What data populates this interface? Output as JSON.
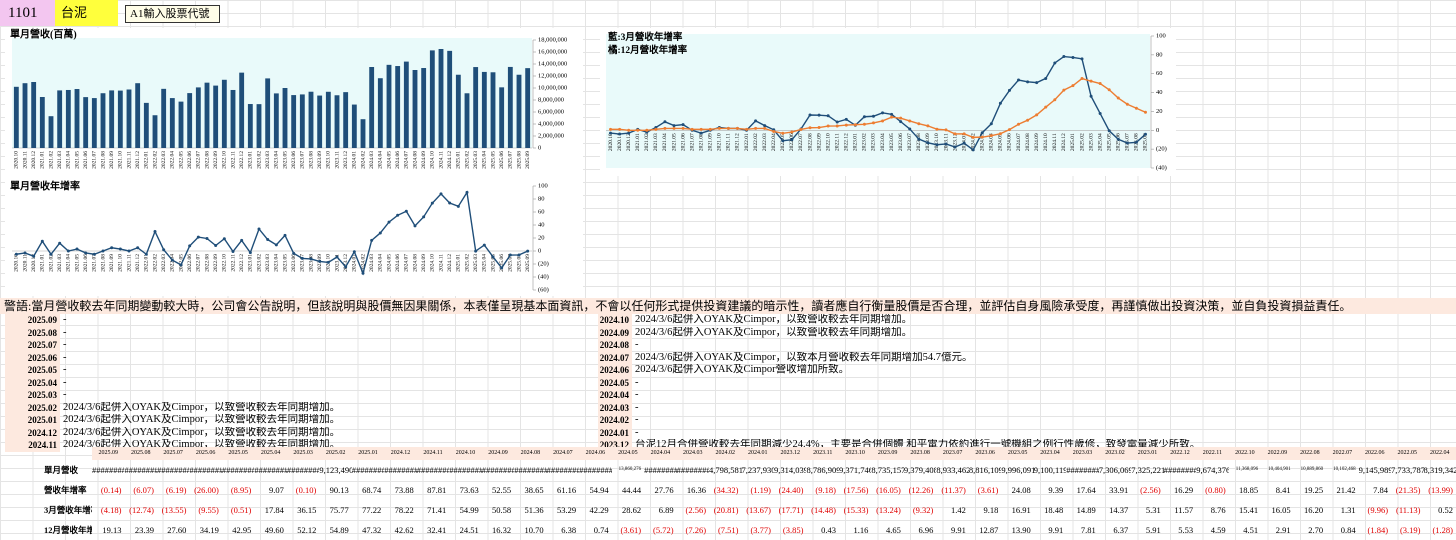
{
  "header": {
    "code": "1101",
    "name": "台泥",
    "hint": "A1輸入股票代號"
  },
  "chart_data": [
    {
      "type": "bar",
      "title": "單月營收(百萬)",
      "categories": [
        "2020.10",
        "2020.11",
        "2020.12",
        "2021.01",
        "2021.02",
        "2021.03",
        "2021.04",
        "2021.05",
        "2021.06",
        "2021.07",
        "2021.08",
        "2021.09",
        "2021.10",
        "2021.11",
        "2021.12",
        "2022.01",
        "2022.02",
        "2022.03",
        "2022.04",
        "2022.05",
        "2022.06",
        "2022.07",
        "2022.08",
        "2022.09",
        "2022.10",
        "2022.11",
        "2022.12",
        "2023.01",
        "2023.02",
        "2023.03",
        "2023.04",
        "2023.05",
        "2023.06",
        "2023.07",
        "2023.08",
        "2023.09",
        "2023.10",
        "2023.11",
        "2023.12",
        "2024.01",
        "2024.02",
        "2024.03",
        "2024.04",
        "2024.05",
        "2024.06",
        "2024.07",
        "2024.08",
        "2024.09",
        "2024.10",
        "2024.11",
        "2024.12",
        "2025.01",
        "2025.02",
        "2025.03",
        "2025.04",
        "2025.05",
        "2025.06",
        "2025.07",
        "2025.08",
        "2025.09"
      ],
      "values": [
        10200000,
        10800000,
        11000000,
        8500000,
        5300000,
        9600000,
        9670000,
        9830000,
        8480000,
        8320000,
        9130000,
        9600000,
        9570000,
        9750000,
        10800000,
        7520000,
        5460000,
        9860000,
        8320000,
        7730000,
        9150000,
        10100000,
        10890000,
        10400000,
        11370000,
        9670000,
        12560000,
        7330000,
        7310000,
        11600000,
        9100000,
        10000000,
        8820000,
        8930000,
        9380000,
        8740000,
        9370000,
        8790000,
        9310000,
        7240000,
        4800000,
        13500000,
        11630000,
        13860000,
        13660000,
        14400000,
        13000000,
        13330000,
        16270000,
        16500000,
        16190000,
        12210000,
        9120000,
        13490000,
        12680000,
        12620000,
        10110000,
        13510000,
        12210000,
        13310000
      ],
      "color": "#1f4e79",
      "ylim": [
        0,
        18000000
      ],
      "yticks": [
        0,
        {
          "value": 2000000,
          "label": "2,000,000"
        },
        {
          "value": 4000000,
          "label": "4,000,000"
        },
        {
          "value": 6000000,
          "label": "6,000,000"
        },
        {
          "value": 8000000,
          "label": "8,000,000"
        },
        {
          "value": 10000000,
          "label": "10,000,000"
        },
        {
          "value": 12000000,
          "label": "12,000,000"
        },
        {
          "value": 14000000,
          "label": "14,000,000"
        },
        {
          "value": 16000000,
          "label": "16,000,000"
        },
        {
          "value": 18000000,
          "label": "18,000,000"
        }
      ]
    },
    {
      "type": "line",
      "title": "單月營收年增率",
      "categories": [
        "2020.10",
        "2020.11",
        "2020.12",
        "2021.01",
        "2021.02",
        "2021.03",
        "2021.04",
        "2021.05",
        "2021.06",
        "2021.07",
        "2021.08",
        "2021.09",
        "2021.10",
        "2021.11",
        "2021.12",
        "2022.01",
        "2022.02",
        "2022.03",
        "2022.04",
        "2022.05",
        "2022.06",
        "2022.07",
        "2022.08",
        "2022.09",
        "2022.10",
        "2022.11",
        "2022.12",
        "2023.01",
        "2023.02",
        "2023.03",
        "2023.04",
        "2023.05",
        "2023.06",
        "2023.07",
        "2023.08",
        "2023.09",
        "2023.10",
        "2023.11",
        "2023.12",
        "2024.01",
        "2024.02",
        "2024.03",
        "2024.04",
        "2024.05",
        "2024.06",
        "2024.07",
        "2024.08",
        "2024.09",
        "2024.10",
        "2024.11",
        "2024.12",
        "2025.01",
        "2025.02",
        "2025.03",
        "2025.04",
        "2025.05",
        "2025.06",
        "2025.07",
        "2025.08",
        "2025.09"
      ],
      "series": [
        {
          "color": "#1f4e79",
          "values": [
            -5,
            -3,
            -8,
            15,
            -5,
            12,
            0,
            3,
            -3,
            -5,
            0,
            5,
            3,
            0,
            5,
            -5,
            30,
            2,
            -13.99,
            -21.35,
            7.84,
            21.42,
            19.25,
            8.41,
            18.85,
            -0.8,
            16.29,
            -2.56,
            33.91,
            17.64,
            9.39,
            24.08,
            -3.61,
            -11.37,
            -12.26,
            -16.05,
            -17.56,
            -9.18,
            -24.4,
            -1.19,
            -34.32,
            16.36,
            27.76,
            44.44,
            54.94,
            61.16,
            38.65,
            52.55,
            73.63,
            87.81,
            73.88,
            68.74,
            90.13,
            -0.1,
            9.07,
            -8.95,
            -26.0,
            -6.19,
            -6.07,
            -0.14
          ]
        }
      ],
      "ylim": [
        -60,
        100
      ],
      "yticks": [
        {
          "value": -60,
          "label": "(60)"
        },
        {
          "value": -40,
          "label": "(40)"
        },
        {
          "value": -20,
          "label": "(20)"
        },
        0,
        20,
        40,
        60,
        80,
        100
      ]
    },
    {
      "type": "line",
      "categories": [
        "2020.10",
        "2020.11",
        "2020.12",
        "2021.01",
        "2021.02",
        "2021.03",
        "2021.04",
        "2021.05",
        "2021.06",
        "2021.07",
        "2021.08",
        "2021.09",
        "2021.10",
        "2021.11",
        "2021.12",
        "2022.01",
        "2022.02",
        "2022.03",
        "2022.04",
        "2022.05",
        "2022.06",
        "2022.07",
        "2022.08",
        "2022.09",
        "2022.10",
        "2022.11",
        "2022.12",
        "2023.01",
        "2023.02",
        "2023.03",
        "2023.04",
        "2023.05",
        "2023.06",
        "2023.07",
        "2023.08",
        "2023.09",
        "2023.10",
        "2023.11",
        "2023.12",
        "2024.01",
        "2024.02",
        "2024.03",
        "2024.04",
        "2024.05",
        "2024.06",
        "2024.07",
        "2024.08",
        "2024.09",
        "2024.10",
        "2024.11",
        "2024.12",
        "2025.01",
        "2025.02",
        "2025.03",
        "2025.04",
        "2025.05",
        "2025.06",
        "2025.07",
        "2025.08",
        "2025.09"
      ],
      "series": [
        {
          "name": "藍:3月營收年增率",
          "color": "#1f4e79",
          "values": [
            -3,
            -4,
            -3,
            1,
            -2,
            3,
            9,
            5,
            6,
            0,
            -3,
            0,
            3,
            2,
            2,
            0,
            10,
            5,
            0.52,
            -11.13,
            -9.96,
            1.31,
            16.2,
            16.05,
            15.41,
            8.76,
            11.57,
            5.31,
            14.37,
            14.89,
            18.48,
            16.91,
            9.18,
            1.42,
            -9.32,
            -13.24,
            -15.33,
            -14.48,
            -17.71,
            -13.67,
            -20.81,
            -2.56,
            6.89,
            28.62,
            42.29,
            53.29,
            51.36,
            50.58,
            54.99,
            71.41,
            78.22,
            77.22,
            75.77,
            36.15,
            17.84,
            -0.51,
            -9.55,
            -13.55,
            -12.74,
            -4.18
          ]
        },
        {
          "name": "橘:12月營收年增率",
          "color": "#ed7d31",
          "values": [
            1,
            1,
            0,
            0,
            0,
            1,
            2,
            2,
            2,
            1,
            1,
            1,
            2,
            2,
            2,
            1,
            2,
            2,
            -1.28,
            -3.19,
            -1.84,
            0.84,
            2.7,
            2.91,
            4.51,
            4.59,
            5.53,
            5.91,
            6.37,
            7.81,
            9.91,
            13.9,
            12.87,
            9.91,
            6.96,
            4.65,
            1.16,
            0.43,
            -3.85,
            -3.77,
            -7.51,
            -7.26,
            -5.72,
            -3.61,
            0.74,
            6.38,
            10.7,
            16.32,
            24.51,
            32.41,
            42.62,
            47.32,
            54.89,
            52.12,
            49.6,
            42.95,
            34.19,
            27.6,
            23.39,
            19.13
          ]
        }
      ],
      "ylim": [
        -40,
        100
      ],
      "yticks": [
        {
          "value": -40,
          "label": "(40)"
        },
        {
          "value": -20,
          "label": "(20)"
        },
        0,
        20,
        40,
        60,
        80,
        100
      ]
    }
  ],
  "notice": "警語:當月營收較去年同期變動較大時，公司會公告說明，但該說明與股價無因果關係，本表僅呈現基本面資訊，不會以任何形式提供投資建議的暗示性，讀者應自行衡量股價是否合理，並評估自身風險承受度，再謹慎做出投資決策，並自負投資損益責任。",
  "notes": {
    "left": [
      {
        "month": "2025.09",
        "text": "-"
      },
      {
        "month": "2025.08",
        "text": "-"
      },
      {
        "month": "2025.07",
        "text": "-"
      },
      {
        "month": "2025.06",
        "text": "-"
      },
      {
        "month": "2025.05",
        "text": "-"
      },
      {
        "month": "2025.04",
        "text": "-"
      },
      {
        "month": "2025.03",
        "text": "-"
      },
      {
        "month": "2025.02",
        "text": "2024/3/6起併入OYAK及Cimpor，以致營收較去年同期增加。"
      },
      {
        "month": "2025.01",
        "text": "2024/3/6起併入OYAK及Cimpor，以致營收較去年同期增加。"
      },
      {
        "month": "2024.12",
        "text": "2024/3/6起併入OYAK及Cimpor，以致營收較去年同期增加。"
      },
      {
        "month": "2024.11",
        "text": "2024/3/6起併入OYAK及Cimpor，以致營收較去年同期增加。"
      }
    ],
    "right": [
      {
        "month": "2024.10",
        "text": "2024/3/6起併入OYAK及Cimpor，以致營收較去年同期增加。"
      },
      {
        "month": "2024.09",
        "text": "2024/3/6起併入OYAK及Cimpor，以致營收較去年同期增加。"
      },
      {
        "month": "2024.08",
        "text": "-"
      },
      {
        "month": "2024.07",
        "text": "2024/3/6起併入OYAK及Cimpor，以致本月營收較去年同期增加54.7億元。"
      },
      {
        "month": "2024.06",
        "text": "2024/3/6起併入OYAK及Cimpor營收增加所致。"
      },
      {
        "month": "2024.05",
        "text": "-"
      },
      {
        "month": "2024.04",
        "text": "-"
      },
      {
        "month": "2024.03",
        "text": "-"
      },
      {
        "month": "2024.02",
        "text": "-"
      },
      {
        "month": "2024.01",
        "text": "-"
      },
      {
        "month": "2023.12",
        "text": "台泥12月合併營收較去年同期減少24.4%，主要是合併個體 和平電力依約進行一號機組之例行性歲修，致發電量減少所致。"
      }
    ]
  },
  "table": {
    "columns": [
      "2025.09",
      "2025.08",
      "2025.07",
      "2025.06",
      "2025.05",
      "2025.04",
      "2025.03",
      "2025.02",
      "2025.01",
      "2024.12",
      "2024.11",
      "2024.10",
      "2024.09",
      "2024.08",
      "2024.07",
      "2024.06",
      "2024.05",
      "2024.04",
      "2024.03",
      "2024.02",
      "2024.01",
      "2023.12",
      "2023.11",
      "2023.10",
      "2023.09",
      "2023.08",
      "2023.07",
      "2023.06",
      "2023.05",
      "2023.04",
      "2023.03",
      "2023.02",
      "2023.01",
      "2022.12",
      "2022.11",
      "2022.10",
      "2022.09",
      "2022.08",
      "2022.07",
      "2022.06",
      "2022.05",
      "2022.04"
    ],
    "rows": [
      {
        "label": "單月營收",
        "cells": [
          "########",
          "########",
          "########",
          "########",
          "########",
          "########",
          "########",
          "9,123,490",
          "########",
          "########",
          "########",
          "########",
          "########",
          "########",
          "########",
          "########",
          "13,860,276",
          "########",
          "########",
          "4,798,581",
          "7,237,930",
          "9,314,039",
          "8,786,909",
          "9,371,746",
          "8,735,157",
          "9,379,408",
          "8,933,462",
          "8,816,109",
          "9,996,091",
          "9,100,119",
          "########",
          "7,306,069",
          "7,325,221",
          "########",
          "9,674,376",
          "11,368,096",
          "10,404,901",
          "10,889,860",
          "10,102,468",
          "9,145,989",
          "7,733,787",
          "8,319,342"
        ]
      },
      {
        "label": "營收年增率",
        "cells": [
          "(0.14)",
          "(6.07)",
          "(6.19)",
          "(26.00)",
          "(8.95)",
          "9.07",
          "(0.10)",
          "90.13",
          "68.74",
          "73.88",
          "87.81",
          "73.63",
          "52.55",
          "38.65",
          "61.16",
          "54.94",
          "44.44",
          "27.76",
          "16.36",
          "(34.32)",
          "(1.19)",
          "(24.40)",
          "(9.18)",
          "(17.56)",
          "(16.05)",
          "(12.26)",
          "(11.37)",
          "(3.61)",
          "24.08",
          "9.39",
          "17.64",
          "33.91",
          "(2.56)",
          "16.29",
          "(0.80)",
          "18.85",
          "8.41",
          "19.25",
          "21.42",
          "7.84",
          "(21.35)",
          "(13.99)"
        ]
      },
      {
        "label": "3月營收年增率",
        "cells": [
          "(4.18)",
          "(12.74)",
          "(13.55)",
          "(9.55)",
          "(0.51)",
          "17.84",
          "36.15",
          "75.77",
          "77.22",
          "78.22",
          "71.41",
          "54.99",
          "50.58",
          "51.36",
          "53.29",
          "42.29",
          "28.62",
          "6.89",
          "(2.56)",
          "(20.81)",
          "(13.67)",
          "(17.71)",
          "(14.48)",
          "(15.33)",
          "(13.24)",
          "(9.32)",
          "1.42",
          "9.18",
          "16.91",
          "18.48",
          "14.89",
          "14.37",
          "5.31",
          "11.57",
          "8.76",
          "15.41",
          "16.05",
          "16.20",
          "1.31",
          "(9.96)",
          "(11.13)",
          "0.52"
        ]
      },
      {
        "label": "12月營收年增率",
        "cells": [
          "19.13",
          "23.39",
          "27.60",
          "34.19",
          "42.95",
          "49.60",
          "52.12",
          "54.89",
          "47.32",
          "42.62",
          "32.41",
          "24.51",
          "16.32",
          "10.70",
          "6.38",
          "0.74",
          "(3.61)",
          "(5.72)",
          "(7.26)",
          "(7.51)",
          "(3.77)",
          "(3.85)",
          "0.43",
          "1.16",
          "4.65",
          "6.96",
          "9.91",
          "12.87",
          "13.90",
          "9.91",
          "7.81",
          "6.37",
          "5.91",
          "5.53",
          "4.59",
          "4.51",
          "2.91",
          "2.70",
          "0.84",
          "(1.84)",
          "(3.19)",
          "(1.28)"
        ]
      }
    ]
  }
}
